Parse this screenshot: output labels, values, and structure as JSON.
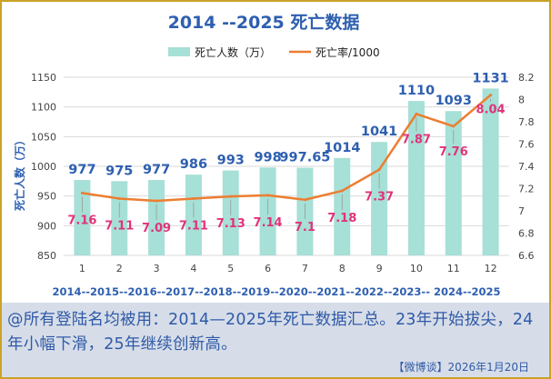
{
  "chart_data": {
    "type": "bar+line",
    "title": "2014 --2025  死亡数据",
    "ylabel_left": "死亡人数（万）",
    "x_categories": [
      "1",
      "2",
      "3",
      "4",
      "5",
      "6",
      "7",
      "8",
      "9",
      "10",
      "11",
      "12"
    ],
    "x_year_labels": "2014--2015--2016--2017--2018--2019--2020--2021--2022--2023-- 2024--2025",
    "left_axis": {
      "min": 850,
      "max": 1150,
      "ticks": [
        "850",
        "900",
        "950",
        "1000",
        "1050",
        "1100",
        "1150"
      ]
    },
    "right_axis": {
      "min": 6.6,
      "max": 8.2,
      "ticks": [
        "6.6",
        "6.8",
        "7",
        "7.2",
        "7.4",
        "7.6",
        "7.8",
        "8",
        "8.2"
      ]
    },
    "series": [
      {
        "name": "死亡人数（万）",
        "kind": "bar",
        "color": "#a6e0d6",
        "values": [
          977,
          975,
          977,
          986,
          993,
          998,
          997.65,
          1014,
          1041,
          1110,
          1093,
          1131
        ],
        "labels": [
          "977",
          "975",
          "977",
          "986",
          "993",
          "998",
          "997.65",
          "1014",
          "1041",
          "1110",
          "1093",
          "1131"
        ],
        "label_color": "#2e5fb0"
      },
      {
        "name": "死亡率/1000",
        "kind": "line",
        "color": "#ed7d31",
        "values": [
          7.16,
          7.11,
          7.09,
          7.11,
          7.13,
          7.14,
          7.1,
          7.18,
          7.37,
          7.87,
          7.76,
          8.04
        ],
        "labels": [
          "7.16",
          "7.11",
          "7.09",
          "7.11",
          "7.13",
          "7.14",
          "7.1",
          "7.18",
          "7.37",
          "7.87",
          "7.76",
          "8.04"
        ],
        "label_color": "#e0327a"
      }
    ],
    "legend_position": "top",
    "grid": true
  },
  "caption": {
    "text": "@所有登陆名均被用：2014—2025年死亡数据汇总。23年开始拔尖，24年小幅下滑，25年继续创新高。",
    "signature": "【微博谈】2026年1月20日"
  }
}
